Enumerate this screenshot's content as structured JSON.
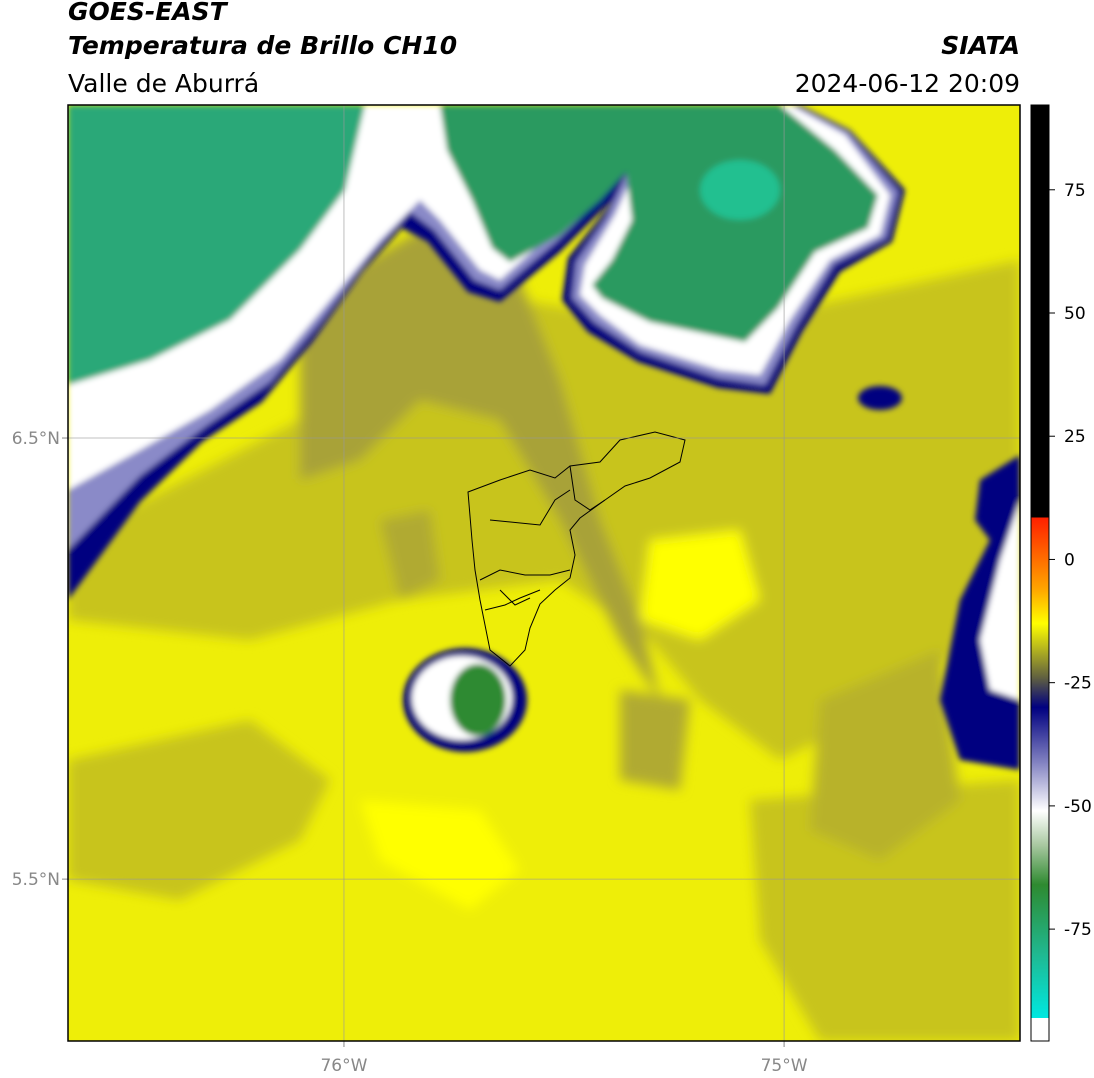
{
  "header": {
    "title": "GOES-EAST",
    "subtitle": "Temperatura de Brillo CH10",
    "region": "Valle de Aburrá",
    "source": "SIATA",
    "datetime": "2024-06-12 20:09"
  },
  "map": {
    "xlim": [
      -76.627,
      -74.464
    ],
    "ylim": [
      5.133,
      7.255
    ],
    "lon_ticks": [
      {
        "value": -76,
        "label": "76°W"
      },
      {
        "value": -75,
        "label": "75°W"
      }
    ],
    "lat_ticks": [
      {
        "value": 6.5,
        "label": "6.5°N"
      },
      {
        "value": 5.5,
        "label": "5.5°N"
      }
    ]
  },
  "colorbar": {
    "range": [
      -97.7,
      92.2
    ],
    "ticks": [
      75,
      50,
      25,
      0,
      -25,
      -50,
      -75
    ],
    "stops": [
      {
        "value": -97.7,
        "color": "#ffffff"
      },
      {
        "value": -93,
        "color": "#ffffff"
      },
      {
        "value": -93,
        "color": "#00e8e0"
      },
      {
        "value": -80,
        "color": "#20b890"
      },
      {
        "value": -66,
        "color": "#2e8a30"
      },
      {
        "value": -58,
        "color": "#a8c8a0"
      },
      {
        "value": -51,
        "color": "#ffffff"
      },
      {
        "value": -41,
        "color": "#8080c0"
      },
      {
        "value": -30,
        "color": "#000080"
      },
      {
        "value": -24,
        "color": "#606040"
      },
      {
        "value": -13,
        "color": "#ffff00"
      },
      {
        "value": -6,
        "color": "#ffa500"
      },
      {
        "value": 8.5,
        "color": "#ff2000"
      },
      {
        "value": 8.5,
        "color": "#000000"
      },
      {
        "value": 92.2,
        "color": "#000000"
      }
    ]
  }
}
